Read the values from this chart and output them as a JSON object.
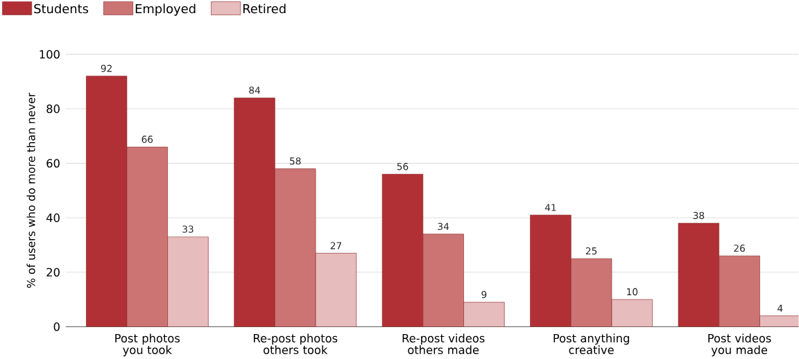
{
  "chart_data": {
    "type": "bar",
    "ylabel": "% of users who do more than never",
    "categories": [
      "Post photos you took",
      "Re-post photos others took",
      "Re-post videos others made",
      "Post anything creative",
      "Post videos you made"
    ],
    "series": [
      {
        "name": "Students",
        "color": "#b03035",
        "values": [
          92,
          84,
          56,
          41,
          38
        ]
      },
      {
        "name": "Employed",
        "color": "#cc7474",
        "values": [
          66,
          58,
          34,
          25,
          26
        ]
      },
      {
        "name": "Retired",
        "color": "#e6bcbc",
        "values": [
          33,
          27,
          9,
          10,
          4
        ]
      }
    ],
    "ylim": [
      0,
      100
    ],
    "yticks": [
      0,
      20,
      40,
      60,
      80,
      100
    ],
    "grid": "y",
    "legend": "top left",
    "data_labels": true
  }
}
